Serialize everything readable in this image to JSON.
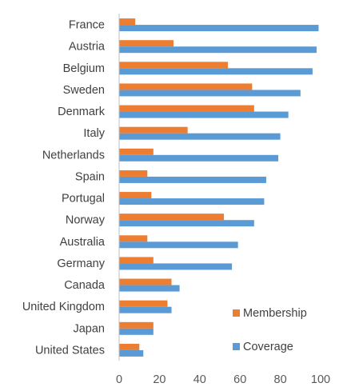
{
  "chart_data": {
    "type": "bar",
    "orientation": "horizontal",
    "categories": [
      "France",
      "Austria",
      "Belgium",
      "Sweden",
      "Denmark",
      "Italy",
      "Netherlands",
      "Spain",
      "Portugal",
      "Norway",
      "Australia",
      "Germany",
      "Canada",
      "United Kingdom",
      "Japan",
      "United States"
    ],
    "series": [
      {
        "name": "Membership",
        "color": "#ED7D31",
        "values": [
          8,
          27,
          54,
          66,
          67,
          34,
          17,
          14,
          16,
          52,
          14,
          17,
          26,
          24,
          17,
          10
        ]
      },
      {
        "name": "Coverage",
        "color": "#5B9BD5",
        "values": [
          99,
          98,
          96,
          90,
          84,
          80,
          79,
          73,
          72,
          67,
          59,
          56,
          30,
          26,
          17,
          12
        ]
      }
    ],
    "xlim": [
      0,
      100
    ],
    "xticks": [
      "0",
      "20",
      "40",
      "60",
      "80",
      "100"
    ],
    "grid": false,
    "legend_position": "bottom-right"
  }
}
